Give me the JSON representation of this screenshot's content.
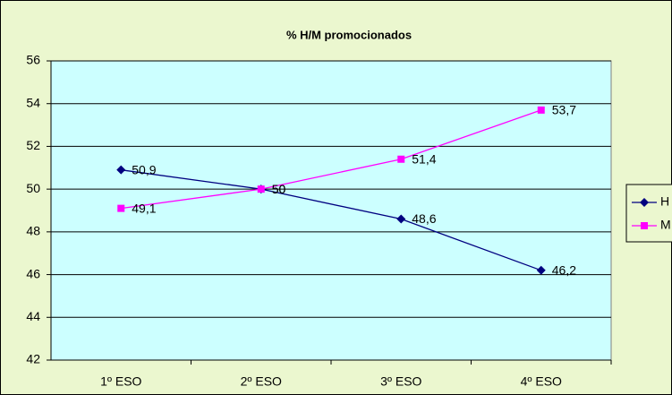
{
  "chart_data": {
    "type": "line",
    "title": "% H/M promocionados",
    "categories": [
      "1º ESO",
      "2º ESO",
      "3º ESO",
      "4º ESO"
    ],
    "series": [
      {
        "name": "H",
        "color": "#000080",
        "marker": "diamond",
        "values": [
          50.9,
          50,
          48.6,
          46.2
        ],
        "value_labels": [
          "50,9",
          "50",
          "48,6",
          "46,2"
        ]
      },
      {
        "name": "M",
        "color": "#ff00ff",
        "marker": "square",
        "values": [
          49.1,
          50,
          51.4,
          53.7
        ],
        "value_labels": [
          "49,1",
          "50",
          "51,4",
          "53,7"
        ]
      }
    ],
    "ylim": [
      42,
      56
    ],
    "yticks": [
      42,
      44,
      46,
      48,
      50,
      52,
      54,
      56
    ],
    "grid": true,
    "legend": "right"
  }
}
